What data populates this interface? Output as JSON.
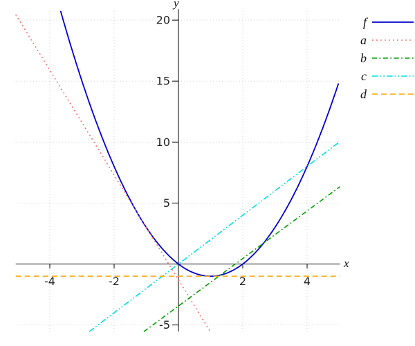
{
  "figure": {
    "background": "#ffffff"
  },
  "axes": {
    "x_label": "x",
    "y_label": "y",
    "x_tick_labels": [
      "-4",
      "-2",
      "2",
      "4"
    ],
    "y_tick_labels": [
      "-5",
      "5",
      "10",
      "15",
      "20"
    ]
  },
  "chart_data": {
    "type": "line",
    "title": "",
    "xlabel": "x",
    "ylabel": "y",
    "xlim": [
      -5.06,
      5.02
    ],
    "ylim": [
      -5.55,
      20.9
    ],
    "x_ticks": [
      -4,
      -2,
      2,
      4
    ],
    "y_ticks": [
      -5,
      5,
      10,
      15,
      20
    ],
    "grid": "dotted",
    "grid_color": "#c6c6c6",
    "legend_position": "outside-top-right",
    "series": [
      {
        "name": "f",
        "kind": "parabola",
        "equation": "y = x^2 - 2x",
        "color": "#0000cc",
        "line_style": "solid",
        "domain": [
          -3.664,
          5.0
        ],
        "key_points": [
          [
            -1,
            3
          ],
          [
            0,
            0
          ],
          [
            1,
            -1
          ],
          [
            2,
            0
          ],
          [
            4,
            8
          ],
          [
            5,
            15
          ]
        ]
      },
      {
        "name": "a",
        "kind": "line",
        "equation": "y = -4.3x - 1.3",
        "slope": -4.3,
        "intercept": -1.3,
        "color": "#ff6666",
        "line_style": "dotted"
      },
      {
        "name": "b",
        "kind": "line",
        "equation": "y = 1.95x - 3.45",
        "slope": 1.95,
        "intercept": -3.45,
        "color": "#00a000",
        "line_style": "dash-dot"
      },
      {
        "name": "c",
        "kind": "line",
        "equation": "y = 2x",
        "slope": 2,
        "intercept": 0,
        "color": "#00e0e0",
        "line_style": "dash-dot-dot"
      },
      {
        "name": "d",
        "kind": "line",
        "equation": "y = -1",
        "slope": 0,
        "intercept": -1,
        "color": "#ffa500",
        "line_style": "dashed"
      }
    ]
  },
  "legend": {
    "items": [
      {
        "label": "f"
      },
      {
        "label": "a"
      },
      {
        "label": "b"
      },
      {
        "label": "c"
      },
      {
        "label": "d"
      }
    ]
  }
}
